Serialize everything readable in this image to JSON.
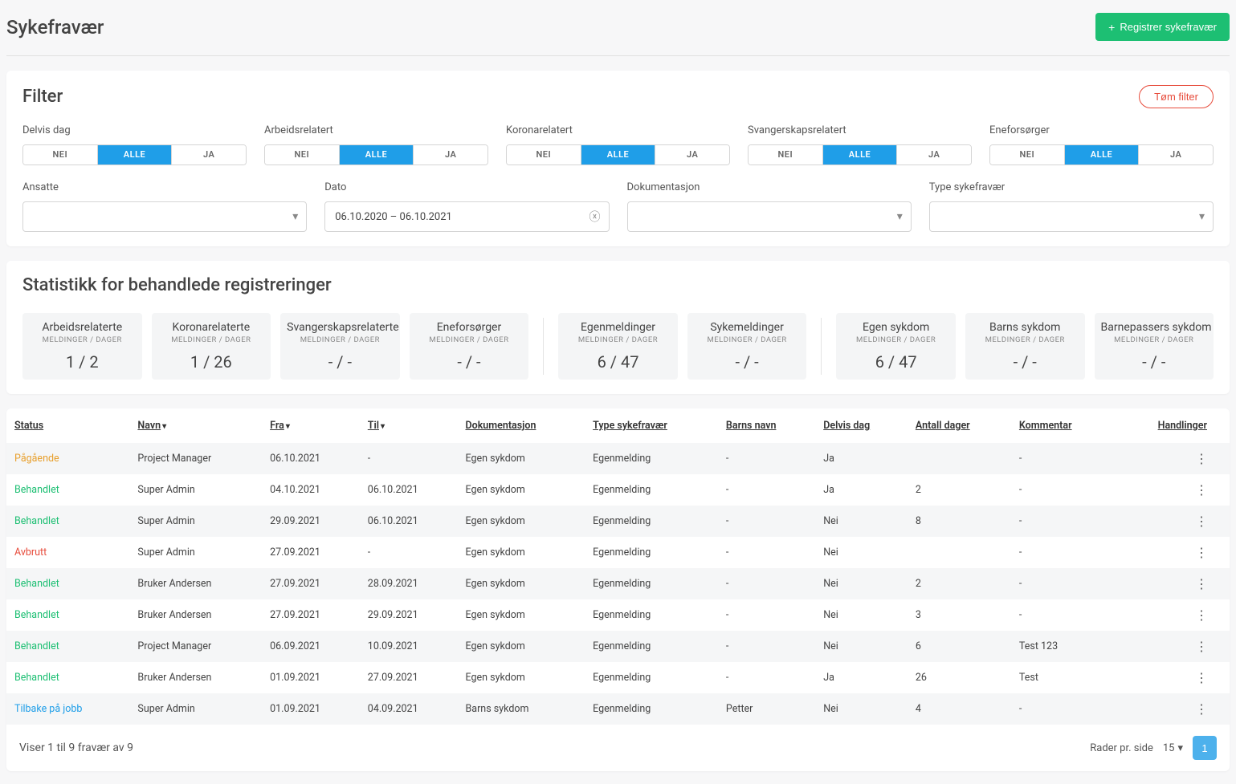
{
  "header": {
    "title": "Sykefravær",
    "register_label": "Registrer sykefravær"
  },
  "filter": {
    "title": "Filter",
    "clear_label": "Tøm filter",
    "segments": {
      "options": {
        "nei": "NEI",
        "alle": "ALLE",
        "ja": "JA"
      }
    },
    "seg_groups": [
      {
        "label": "Delvis dag"
      },
      {
        "label": "Arbeidsrelatert"
      },
      {
        "label": "Koronarelatert"
      },
      {
        "label": "Svangerskapsrelatert"
      },
      {
        "label": "Eneforsørger"
      }
    ],
    "ansatte_label": "Ansatte",
    "dato_label": "Dato",
    "dato_value": "06.10.2020 – 06.10.2021",
    "dokumentasjon_label": "Dokumentasjon",
    "type_label": "Type sykefravær"
  },
  "stats": {
    "title": "Statistikk for behandlede registreringer",
    "sub": "MELDINGER / DAGER",
    "boxes": [
      {
        "name": "Arbeidsrelaterte",
        "val": "1 / 2"
      },
      {
        "name": "Koronarelaterte",
        "val": "1 / 26"
      },
      {
        "name": "Svangerskapsrelaterte",
        "val": "- / -"
      },
      {
        "name": "Eneforsørger",
        "val": "- / -"
      },
      {
        "name": "Egenmeldinger",
        "val": "6 / 47"
      },
      {
        "name": "Sykemeldinger",
        "val": "- / -"
      },
      {
        "name": "Egen sykdom",
        "val": "6 / 47"
      },
      {
        "name": "Barns sykdom",
        "val": "- / -"
      },
      {
        "name": "Barnepassers sykdom",
        "val": "- / -"
      }
    ],
    "dividers_after": [
      3,
      5
    ]
  },
  "table": {
    "columns": [
      "Status",
      "Navn",
      "Fra",
      "Til",
      "Dokumentasjon",
      "Type sykefravær",
      "Barns navn",
      "Delvis dag",
      "Antall dager",
      "Kommentar",
      "Handlinger"
    ],
    "rows": [
      {
        "status": "Pågående",
        "status_class": "status-pagaende",
        "navn": "Project Manager",
        "fra": "06.10.2021",
        "til": "-",
        "dok": "Egen sykdom",
        "type": "Egenmelding",
        "barn": "-",
        "delvis": "Ja",
        "dager": "",
        "komm": "-"
      },
      {
        "status": "Behandlet",
        "status_class": "status-behandlet",
        "navn": "Super Admin",
        "fra": "04.10.2021",
        "til": "06.10.2021",
        "dok": "Egen sykdom",
        "type": "Egenmelding",
        "barn": "-",
        "delvis": "Ja",
        "dager": "2",
        "komm": "-"
      },
      {
        "status": "Behandlet",
        "status_class": "status-behandlet",
        "navn": "Super Admin",
        "fra": "29.09.2021",
        "til": "06.10.2021",
        "dok": "Egen sykdom",
        "type": "Egenmelding",
        "barn": "-",
        "delvis": "Nei",
        "dager": "8",
        "komm": "-"
      },
      {
        "status": "Avbrutt",
        "status_class": "status-avbrutt",
        "navn": "Super Admin",
        "fra": "27.09.2021",
        "til": "-",
        "dok": "Egen sykdom",
        "type": "Egenmelding",
        "barn": "-",
        "delvis": "Nei",
        "dager": "",
        "komm": "-"
      },
      {
        "status": "Behandlet",
        "status_class": "status-behandlet",
        "navn": "Bruker Andersen",
        "fra": "27.09.2021",
        "til": "28.09.2021",
        "dok": "Egen sykdom",
        "type": "Egenmelding",
        "barn": "-",
        "delvis": "Nei",
        "dager": "2",
        "komm": "-"
      },
      {
        "status": "Behandlet",
        "status_class": "status-behandlet",
        "navn": "Bruker Andersen",
        "fra": "27.09.2021",
        "til": "29.09.2021",
        "dok": "Egen sykdom",
        "type": "Egenmelding",
        "barn": "-",
        "delvis": "Nei",
        "dager": "3",
        "komm": "-"
      },
      {
        "status": "Behandlet",
        "status_class": "status-behandlet",
        "navn": "Project Manager",
        "fra": "06.09.2021",
        "til": "10.09.2021",
        "dok": "Egen sykdom",
        "type": "Egenmelding",
        "barn": "-",
        "delvis": "Nei",
        "dager": "6",
        "komm": "Test 123"
      },
      {
        "status": "Behandlet",
        "status_class": "status-behandlet",
        "navn": "Bruker Andersen",
        "fra": "01.09.2021",
        "til": "27.09.2021",
        "dok": "Egen sykdom",
        "type": "Egenmelding",
        "barn": "-",
        "delvis": "Ja",
        "dager": "26",
        "komm": "Test"
      },
      {
        "status": "Tilbake på jobb",
        "status_class": "status-tilbake",
        "navn": "Super Admin",
        "fra": "01.09.2021",
        "til": "04.09.2021",
        "dok": "Barns sykdom",
        "type": "Egenmelding",
        "barn": "Petter",
        "delvis": "Nei",
        "dager": "4",
        "komm": "-"
      }
    ],
    "footer_text": "Viser 1 til 9 fravær av 9",
    "rows_per_label": "Rader pr. side",
    "rows_per_value": "15",
    "page_current": "1"
  }
}
